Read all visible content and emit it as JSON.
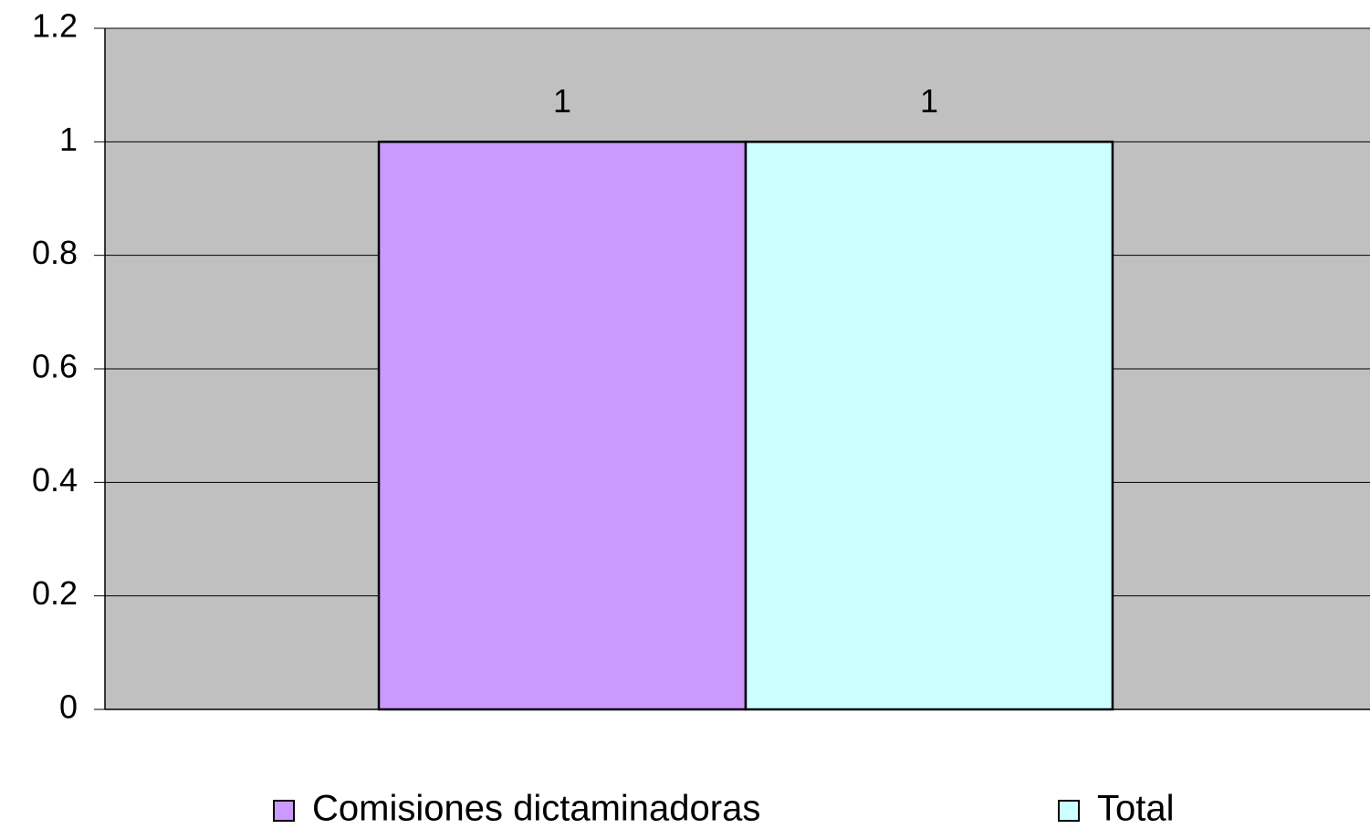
{
  "chart_data": {
    "type": "bar",
    "categories": [
      null
    ],
    "series": [
      {
        "name": "Comisiones dictaminadoras",
        "color": "#cc99ff",
        "values": [
          1
        ]
      },
      {
        "name": "Total",
        "color": "#ccffff",
        "values": [
          1
        ]
      }
    ],
    "ylim": [
      0,
      1.2
    ],
    "yticks": [
      0,
      0.2,
      0.4,
      0.6,
      0.8,
      1,
      1.2
    ],
    "grid": true,
    "plot_background": "#c0c0c0",
    "legend": "bottom"
  }
}
